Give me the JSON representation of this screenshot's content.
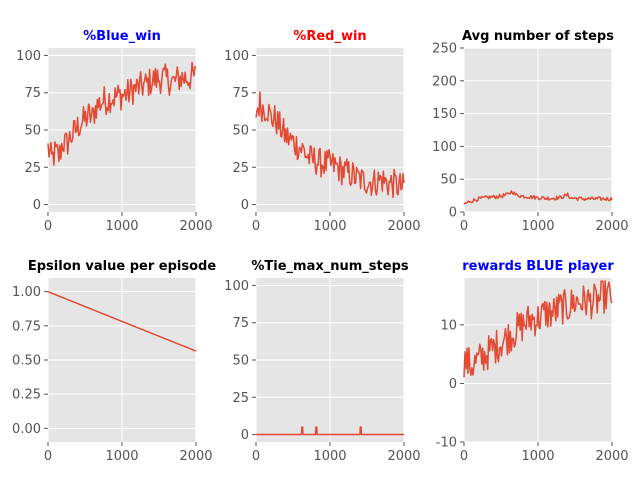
{
  "figure": {
    "background": "#ffffff",
    "axes_facecolor": "#e5e5e5",
    "grid_color": "#ffffff",
    "line_color": "#e24a33",
    "tick_color": "#555555"
  },
  "chart_data": [
    {
      "type": "line",
      "title": "%Blue_win",
      "title_color": "#0000ff",
      "xlabel": "",
      "ylabel": "",
      "xlim": [
        0,
        2000
      ],
      "ylim": [
        -5,
        105
      ],
      "xticks": [
        0,
        1000,
        2000
      ],
      "yticks": [
        0,
        25,
        50,
        75,
        100
      ],
      "grid": true,
      "series": [
        {
          "points": [
            [
              0,
              38
            ],
            [
              50,
              30
            ],
            [
              100,
              35
            ],
            [
              150,
              32
            ],
            [
              200,
              42
            ],
            [
              250,
              40
            ],
            [
              300,
              45
            ],
            [
              350,
              48
            ],
            [
              400,
              52
            ],
            [
              450,
              55
            ],
            [
              500,
              57
            ],
            [
              550,
              60
            ],
            [
              600,
              58
            ],
            [
              650,
              66
            ],
            [
              700,
              68
            ],
            [
              750,
              70
            ],
            [
              800,
              70
            ],
            [
              850,
              72
            ],
            [
              900,
              72
            ],
            [
              950,
              73
            ],
            [
              1000,
              73
            ],
            [
              1050,
              74
            ],
            [
              1100,
              75
            ],
            [
              1150,
              77
            ],
            [
              1200,
              78
            ],
            [
              1250,
              79
            ],
            [
              1300,
              80
            ],
            [
              1350,
              81
            ],
            [
              1400,
              83
            ],
            [
              1450,
              84
            ],
            [
              1500,
              84
            ],
            [
              1550,
              85
            ],
            [
              1600,
              84
            ],
            [
              1650,
              83
            ],
            [
              1700,
              82
            ],
            [
              1750,
              84
            ],
            [
              1800,
              85
            ],
            [
              1850,
              85
            ],
            [
              1900,
              85
            ],
            [
              1950,
              86
            ],
            [
              2000,
              86
            ]
          ],
          "noise": 10,
          "lo": 15,
          "hi": 100
        }
      ]
    },
    {
      "type": "line",
      "title": "%Red_win",
      "title_color": "#ff0000",
      "xlabel": "",
      "ylabel": "",
      "xlim": [
        0,
        2000
      ],
      "ylim": [
        -5,
        105
      ],
      "xticks": [
        0,
        1000,
        2000
      ],
      "yticks": [
        0,
        25,
        50,
        75,
        100
      ],
      "grid": true,
      "series": [
        {
          "points": [
            [
              0,
              62
            ],
            [
              50,
              68
            ],
            [
              100,
              64
            ],
            [
              150,
              65
            ],
            [
              200,
              58
            ],
            [
              250,
              58
            ],
            [
              300,
              54
            ],
            [
              350,
              50
            ],
            [
              400,
              46
            ],
            [
              450,
              44
            ],
            [
              500,
              42
            ],
            [
              550,
              40
            ],
            [
              600,
              38
            ],
            [
              650,
              36
            ],
            [
              700,
              32
            ],
            [
              750,
              30
            ],
            [
              800,
              30
            ],
            [
              850,
              28
            ],
            [
              900,
              28
            ],
            [
              950,
              27
            ],
            [
              1000,
              27
            ],
            [
              1050,
              26
            ],
            [
              1100,
              25
            ],
            [
              1150,
              23
            ],
            [
              1200,
              22
            ],
            [
              1250,
              21
            ],
            [
              1300,
              20
            ],
            [
              1350,
              18
            ],
            [
              1400,
              17
            ],
            [
              1450,
              16
            ],
            [
              1500,
              16
            ],
            [
              1550,
              15
            ],
            [
              1600,
              15
            ],
            [
              1650,
              16
            ],
            [
              1700,
              17
            ],
            [
              1750,
              15
            ],
            [
              1800,
              14
            ],
            [
              1850,
              14
            ],
            [
              1900,
              13
            ],
            [
              1950,
              12
            ],
            [
              2000,
              11
            ]
          ],
          "noise": 10,
          "lo": 0,
          "hi": 85
        }
      ]
    },
    {
      "type": "line",
      "title": "Avg number of steps",
      "title_color": "#000000",
      "xlabel": "",
      "ylabel": "",
      "xlim": [
        0,
        2000
      ],
      "ylim": [
        0,
        250
      ],
      "xticks": [
        0,
        1000,
        2000
      ],
      "yticks": [
        0,
        50,
        100,
        150,
        200,
        250
      ],
      "grid": true,
      "series": [
        {
          "points": [
            [
              0,
              12
            ],
            [
              100,
              17
            ],
            [
              200,
              20
            ],
            [
              300,
              22
            ],
            [
              400,
              23
            ],
            [
              500,
              24
            ],
            [
              600,
              27
            ],
            [
              650,
              32
            ],
            [
              700,
              26
            ],
            [
              800,
              24
            ],
            [
              900,
              23
            ],
            [
              1000,
              22
            ],
            [
              1100,
              21
            ],
            [
              1200,
              21
            ],
            [
              1300,
              22
            ],
            [
              1400,
              26
            ],
            [
              1450,
              21
            ],
            [
              1500,
              21
            ],
            [
              1600,
              20
            ],
            [
              1700,
              20
            ],
            [
              1800,
              20
            ],
            [
              1900,
              20
            ],
            [
              2000,
              20
            ]
          ],
          "noise": 3,
          "lo": 8,
          "hi": 40
        }
      ]
    },
    {
      "type": "line",
      "title": "Epsilon value per episode",
      "title_color": "#000000",
      "xlabel": "",
      "ylabel": "",
      "xlim": [
        0,
        2000
      ],
      "ylim": [
        -0.1,
        1.1
      ],
      "xticks": [
        0,
        1000,
        2000
      ],
      "yticks": [
        0.0,
        0.25,
        0.5,
        0.75,
        1.0
      ],
      "ytick_labels": [
        "0.00",
        "0.25",
        "0.50",
        "0.75",
        "1.00"
      ],
      "grid": true,
      "series": [
        {
          "points": [
            [
              0,
              1.0
            ],
            [
              2000,
              0.565
            ]
          ],
          "noise": 0
        }
      ]
    },
    {
      "type": "line",
      "title": "%Tie_max_num_steps",
      "title_color": "#000000",
      "xlabel": "",
      "ylabel": "",
      "xlim": [
        0,
        2000
      ],
      "ylim": [
        -5,
        105
      ],
      "xticks": [
        0,
        1000,
        2000
      ],
      "yticks": [
        0,
        25,
        50,
        75,
        100
      ],
      "grid": true,
      "series": [
        {
          "points": [
            [
              0,
              0
            ],
            [
              615,
              0
            ],
            [
              620,
              5
            ],
            [
              630,
              5
            ],
            [
              635,
              0
            ],
            [
              805,
              0
            ],
            [
              810,
              5
            ],
            [
              820,
              5
            ],
            [
              825,
              0
            ],
            [
              1405,
              0
            ],
            [
              1410,
              5
            ],
            [
              1420,
              5
            ],
            [
              1425,
              0
            ],
            [
              2000,
              0
            ]
          ],
          "noise": 0
        }
      ]
    },
    {
      "type": "line",
      "title": "rewards BLUE player",
      "title_color": "#0000ff",
      "xlabel": "",
      "ylabel": "",
      "xlim": [
        0,
        2000
      ],
      "ylim": [
        -10,
        18
      ],
      "xticks": [
        0,
        1000,
        2000
      ],
      "yticks": [
        -10,
        0,
        10
      ],
      "grid": true,
      "series": [
        {
          "points": [
            [
              0,
              4
            ],
            [
              100,
              3
            ],
            [
              200,
              4
            ],
            [
              300,
              5
            ],
            [
              400,
              6
            ],
            [
              500,
              7
            ],
            [
              600,
              8
            ],
            [
              700,
              9
            ],
            [
              800,
              10
            ],
            [
              900,
              11
            ],
            [
              1000,
              11
            ],
            [
              1100,
              12
            ],
            [
              1200,
              12
            ],
            [
              1300,
              13
            ],
            [
              1400,
              13
            ],
            [
              1500,
              14
            ],
            [
              1600,
              14
            ],
            [
              1700,
              14
            ],
            [
              1800,
              14
            ],
            [
              1900,
              15
            ],
            [
              2000,
              15
            ]
          ],
          "noise": 3,
          "lo": -1,
          "hi": 17.5
        }
      ]
    }
  ]
}
